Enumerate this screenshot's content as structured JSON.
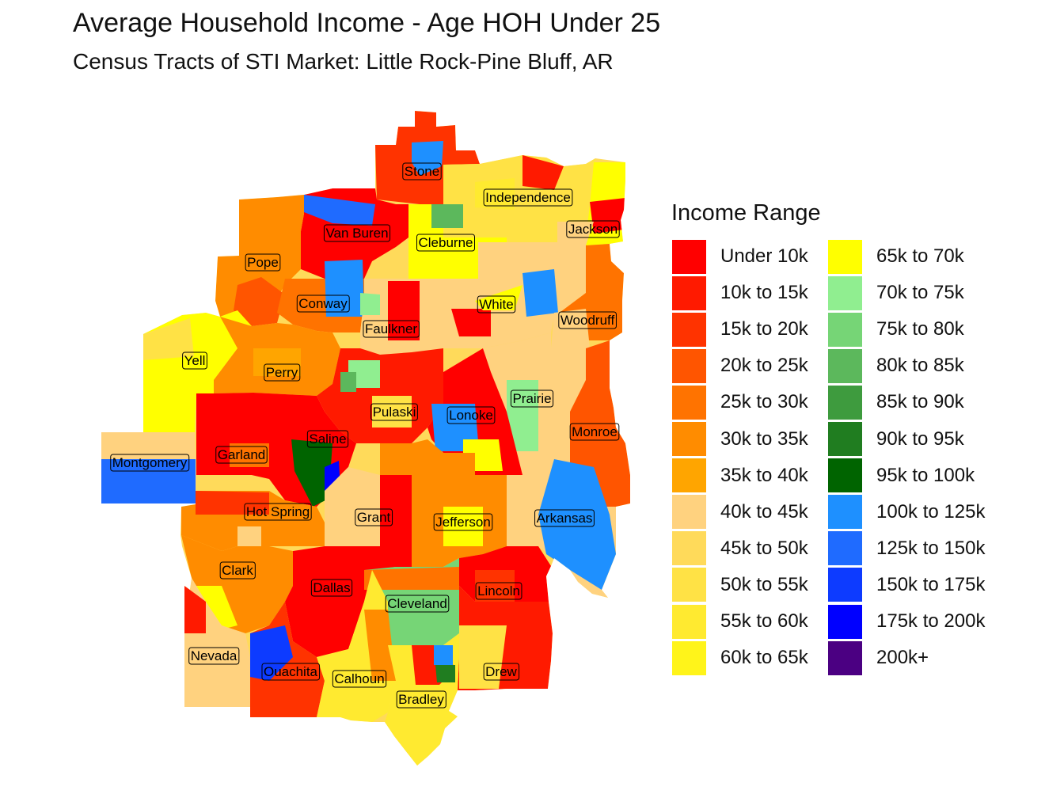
{
  "title": "Average Household Income - Age HOH Under 25",
  "subtitle": "Census Tracts of STI Market: Little Rock-Pine Bluff, AR",
  "legend": {
    "title": "Income Range",
    "items": [
      {
        "label": "Under 10k",
        "color": "#FF0000"
      },
      {
        "label": "10k to 15k",
        "color": "#FF1A00"
      },
      {
        "label": "15k to 20k",
        "color": "#FF3300"
      },
      {
        "label": "20k to 25k",
        "color": "#FF5500"
      },
      {
        "label": "25k to 30k",
        "color": "#FF7300"
      },
      {
        "label": "30k to 35k",
        "color": "#FF8C00"
      },
      {
        "label": "35k to 40k",
        "color": "#FFA500"
      },
      {
        "label": "40k to 45k",
        "color": "#FFD27F"
      },
      {
        "label": "45k to 50k",
        "color": "#FFDA5A"
      },
      {
        "label": "50k to 55k",
        "color": "#FFE245"
      },
      {
        "label": "55k to 60k",
        "color": "#FFEA30"
      },
      {
        "label": "60k to 65k",
        "color": "#FFF41A"
      },
      {
        "label": "65k to 70k",
        "color": "#FFFF00"
      },
      {
        "label": "70k to 75k",
        "color": "#90EE90"
      },
      {
        "label": "75k to 80k",
        "color": "#76D576"
      },
      {
        "label": "80k to 85k",
        "color": "#5CB85C"
      },
      {
        "label": "85k to 90k",
        "color": "#3E9B3E"
      },
      {
        "label": "90k to 95k",
        "color": "#207D20"
      },
      {
        "label": "95k to 100k",
        "color": "#006400"
      },
      {
        "label": "100k to 125k",
        "color": "#1E90FF"
      },
      {
        "label": "125k to 150k",
        "color": "#1F6BFF"
      },
      {
        "label": "150k to 175k",
        "color": "#0D3BFF"
      },
      {
        "label": "175k to 200k",
        "color": "#0000FF"
      },
      {
        "label": "200k+",
        "color": "#4B0082"
      }
    ]
  },
  "counties": [
    {
      "name": "Stone",
      "income_range": "10k to 15k"
    },
    {
      "name": "Independence",
      "income_range": "40k to 45k"
    },
    {
      "name": "Jackson",
      "income_range": "65k to 70k"
    },
    {
      "name": "Van Buren",
      "income_range": "Under 10k"
    },
    {
      "name": "Cleburne",
      "income_range": "60k to 65k"
    },
    {
      "name": "Pope",
      "income_range": "30k to 35k"
    },
    {
      "name": "Conway",
      "income_range": "100k to 125k"
    },
    {
      "name": "White",
      "income_range": "45k to 50k"
    },
    {
      "name": "Woodruff",
      "income_range": "40k to 45k"
    },
    {
      "name": "Faulkner",
      "income_range": "40k to 45k"
    },
    {
      "name": "Yell",
      "income_range": "60k to 65k"
    },
    {
      "name": "Perry",
      "income_range": "30k to 35k"
    },
    {
      "name": "Prairie",
      "income_range": "70k to 75k"
    },
    {
      "name": "Pulaski",
      "income_range": "10k to 15k"
    },
    {
      "name": "Lonoke",
      "income_range": "100k to 125k"
    },
    {
      "name": "Monroe",
      "income_range": "20k to 25k"
    },
    {
      "name": "Saline",
      "income_range": "95k to 100k"
    },
    {
      "name": "Garland",
      "income_range": "Under 10k"
    },
    {
      "name": "Montgomery",
      "income_range": "125k to 150k"
    },
    {
      "name": "Hot Spring",
      "income_range": "30k to 35k"
    },
    {
      "name": "Grant",
      "income_range": "40k to 45k"
    },
    {
      "name": "Jefferson",
      "income_range": "25k to 30k"
    },
    {
      "name": "Arkansas",
      "income_range": "100k to 125k"
    },
    {
      "name": "Clark",
      "income_range": "30k to 35k"
    },
    {
      "name": "Dallas",
      "income_range": "Under 10k"
    },
    {
      "name": "Lincoln",
      "income_range": "Under 10k"
    },
    {
      "name": "Cleveland",
      "income_range": "75k to 80k"
    },
    {
      "name": "Nevada",
      "income_range": "40k to 45k"
    },
    {
      "name": "Ouachita",
      "income_range": "150k to 175k"
    },
    {
      "name": "Calhoun",
      "income_range": "55k to 60k"
    },
    {
      "name": "Drew",
      "income_range": "Under 10k"
    },
    {
      "name": "Bradley",
      "income_range": "55k to 60k"
    }
  ]
}
